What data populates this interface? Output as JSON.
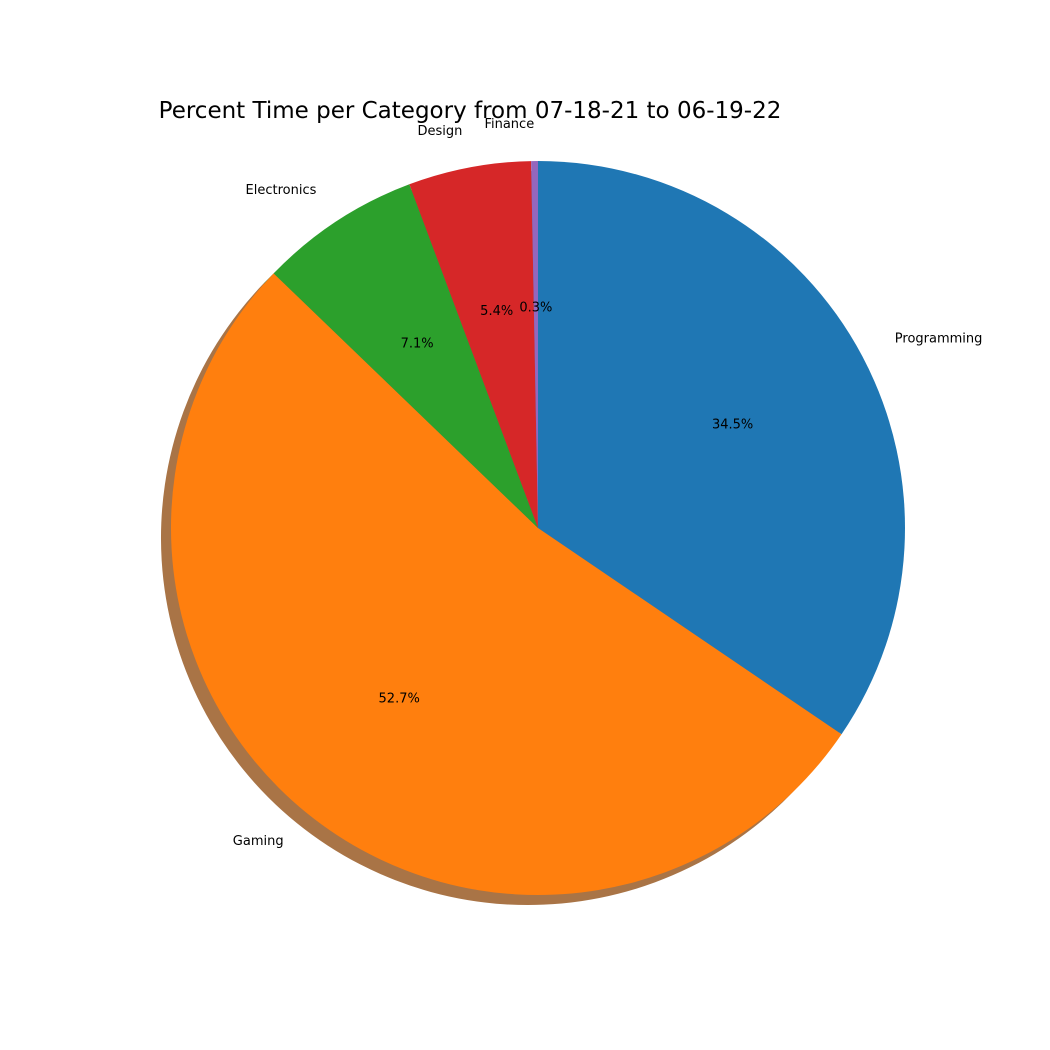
{
  "chart_data": {
    "type": "pie",
    "title": "Percent Time per Category from 07-18-21 to 06-19-22",
    "start_angle_deg": 90,
    "direction": "clockwise",
    "shadow": true,
    "slices": [
      {
        "label": "Programming",
        "percent_label": "34.5%",
        "value": 34.5,
        "color": "#1f77b4"
      },
      {
        "label": "Gaming",
        "percent_label": "52.7%",
        "value": 52.7,
        "color": "#ff7f0e"
      },
      {
        "label": "Electronics",
        "percent_label": "7.1%",
        "value": 7.1,
        "color": "#2ca02c"
      },
      {
        "label": "Design",
        "percent_label": "5.4%",
        "value": 5.4,
        "color": "#d62728"
      },
      {
        "label": "Finance",
        "percent_label": "0.3%",
        "value": 0.3,
        "color": "#9467bd"
      }
    ]
  }
}
